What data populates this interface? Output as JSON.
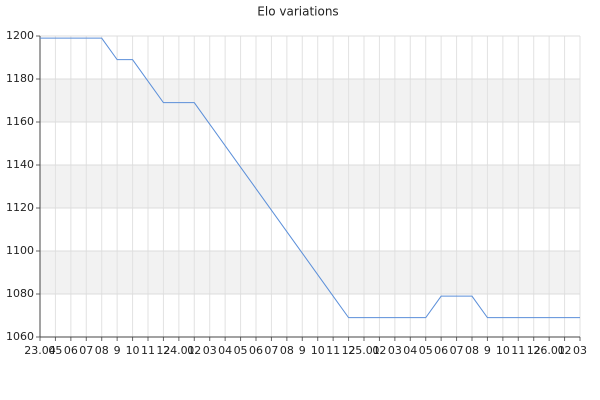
{
  "chart_data": {
    "type": "line",
    "title": "Elo variations",
    "categories": [
      "23.04",
      "05",
      "06",
      "07",
      "08",
      "9",
      "10",
      "11",
      "12",
      "24.01",
      "02",
      "03",
      "04",
      "05",
      "06",
      "07",
      "08",
      "9",
      "10",
      "11",
      "12",
      "25.01",
      "02",
      "03",
      "04",
      "05",
      "06",
      "07",
      "08",
      "9",
      "10",
      "11",
      "12",
      "26.01",
      "02",
      "03"
    ],
    "values": [
      1199,
      1199,
      1199,
      1199,
      1199,
      1189,
      1189,
      1179,
      1169,
      1169,
      1169,
      1159,
      1149,
      1139,
      1129,
      1119,
      1109,
      1099,
      1089,
      1079,
      1069,
      1069,
      1069,
      1069,
      1069,
      1069,
      1079,
      1079,
      1079,
      1069,
      1069,
      1069,
      1069,
      1069,
      1069,
      1069
    ],
    "color": "#5b8fd9",
    "ylim": [
      1060,
      1200
    ],
    "yticks": [
      1060,
      1080,
      1100,
      1120,
      1140,
      1160,
      1180,
      1200
    ],
    "grid": true
  }
}
